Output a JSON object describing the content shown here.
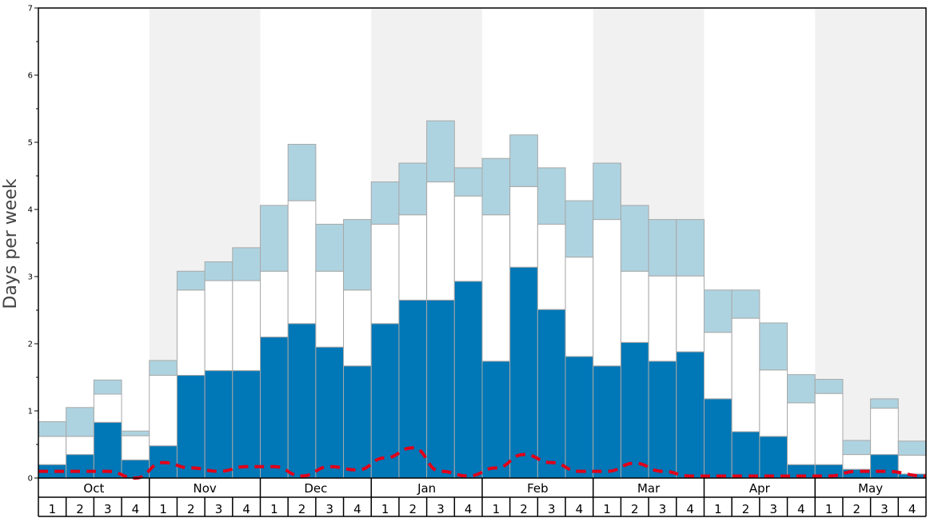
{
  "chart_data": {
    "type": "bar",
    "ylabel": "Days per week",
    "ylim": [
      0,
      7
    ],
    "yticks": [
      "0",
      "1",
      "2",
      "3",
      "4",
      "5",
      "6",
      "7"
    ],
    "months": [
      "Oct",
      "Nov",
      "Dec",
      "Jan",
      "Feb",
      "Mar",
      "Apr",
      "May"
    ],
    "weeks": [
      "1",
      "2",
      "3",
      "4"
    ],
    "colors": {
      "dark": "#0077b6",
      "white": "#ffffff",
      "light": "#aed3e0",
      "band": "#f1f1f1",
      "line": "#e0001a",
      "edge": "#a8a8a8"
    },
    "series": [
      {
        "values": [
          0.2,
          0.35,
          0.83,
          0.27,
          0.48,
          1.53,
          1.6,
          1.6,
          2.1,
          2.3,
          1.95,
          1.67,
          2.3,
          2.65,
          2.65,
          2.93,
          1.74,
          3.14,
          2.51,
          1.81,
          1.67,
          2.02,
          1.74,
          1.88,
          1.18,
          0.69,
          0.62,
          0.2,
          0.2,
          0.13,
          0.35,
          0.06
        ]
      },
      {
        "values": [
          0.42,
          0.27,
          0.42,
          0.36,
          1.05,
          1.27,
          1.34,
          1.34,
          0.98,
          1.83,
          1.13,
          1.13,
          1.48,
          1.27,
          1.76,
          1.27,
          2.18,
          1.2,
          1.27,
          1.48,
          2.18,
          1.06,
          1.27,
          1.13,
          0.99,
          1.69,
          0.99,
          0.92,
          1.06,
          0.22,
          0.69,
          0.28
        ]
      },
      {
        "values": [
          0.22,
          0.43,
          0.21,
          0.07,
          0.22,
          0.28,
          0.28,
          0.49,
          0.98,
          0.84,
          0.7,
          1.05,
          0.63,
          0.77,
          0.91,
          0.42,
          0.84,
          0.77,
          0.84,
          0.84,
          0.84,
          0.98,
          0.84,
          0.84,
          0.63,
          0.42,
          0.7,
          0.42,
          0.21,
          0.21,
          0.14,
          0.21
        ]
      }
    ],
    "line": {
      "values": [
        0.1,
        0.1,
        0.1,
        0.0,
        0.23,
        0.15,
        0.1,
        0.17,
        0.17,
        0.03,
        0.17,
        0.12,
        0.3,
        0.45,
        0.1,
        0.03,
        0.15,
        0.35,
        0.23,
        0.1,
        0.1,
        0.22,
        0.1,
        0.03,
        0.03,
        0.03,
        0.03,
        0.03,
        0.03,
        0.1,
        0.1,
        0.03
      ]
    }
  }
}
